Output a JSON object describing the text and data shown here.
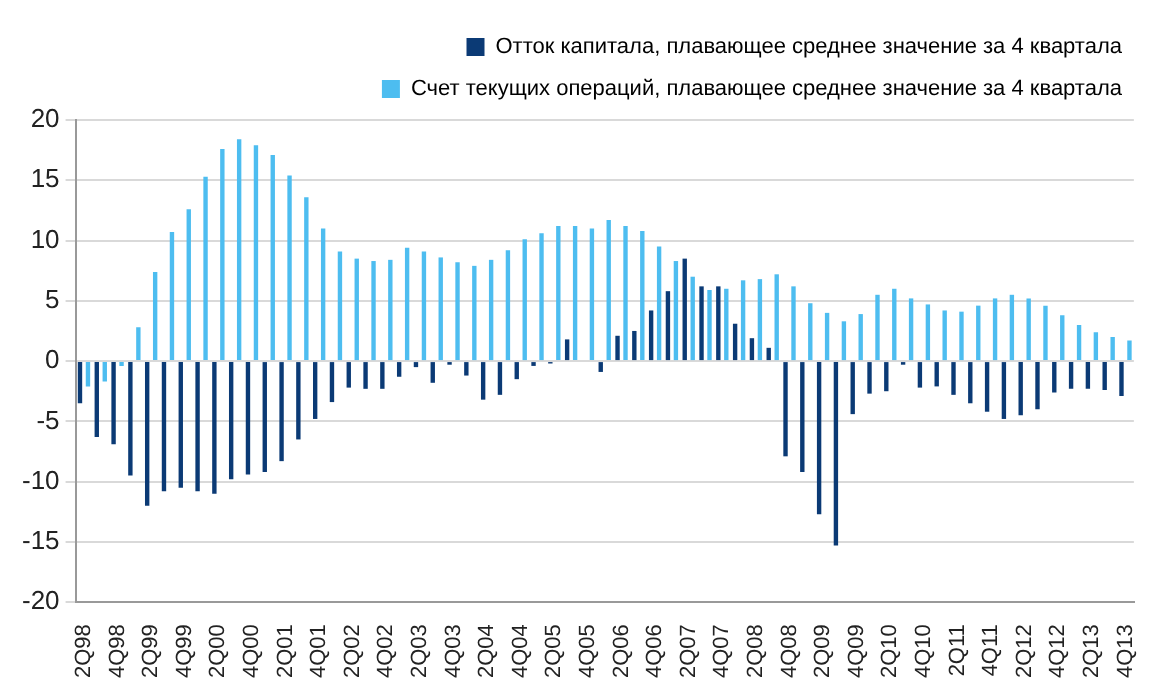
{
  "chart_data": {
    "type": "bar",
    "categories": [
      "2Q98",
      null,
      "4Q98",
      null,
      "2Q99",
      null,
      "4Q99",
      null,
      "2Q00",
      null,
      "4Q00",
      null,
      "2Q01",
      null,
      "4Q01",
      null,
      "2Q02",
      null,
      "4Q02",
      null,
      "2Q03",
      null,
      "4Q03",
      null,
      "2Q04",
      null,
      "4Q04",
      null,
      "2Q05",
      null,
      "4Q05",
      null,
      "2Q06",
      null,
      "4Q06",
      null,
      "2Q07",
      null,
      "4Q07",
      null,
      "2Q08",
      null,
      "4Q08",
      null,
      "2Q09",
      null,
      "4Q09",
      null,
      "2Q10",
      null,
      "4Q10",
      null,
      "2Q11",
      null,
      "4Q11",
      null,
      "2Q12",
      null,
      "4Q12",
      null,
      "2Q13",
      null,
      "4Q13"
    ],
    "series": [
      {
        "name": "Отток капитала, плавающее среднее значение за 4 квартала",
        "color": "#0b3a75",
        "values": [
          -3.5,
          -6.3,
          -6.9,
          -9.5,
          -12.0,
          -10.8,
          -10.5,
          -10.8,
          -11.0,
          -9.8,
          -9.4,
          -9.2,
          -8.3,
          -6.5,
          -4.8,
          -3.4,
          -2.2,
          -2.3,
          -2.3,
          -1.3,
          -0.5,
          -1.8,
          -0.3,
          -1.2,
          -3.2,
          -2.8,
          -1.5,
          -0.4,
          -0.2,
          1.8,
          0,
          -0.9,
          2.1,
          2.5,
          4.2,
          5.8,
          8.5,
          6.2,
          6.2,
          3.1,
          1.9,
          1.1,
          -7.9,
          -9.2,
          -12.7,
          -15.3,
          -4.4,
          -2.7,
          -2.5,
          -0.3,
          -2.2,
          -2.1,
          -2.8,
          -3.5,
          -4.2,
          -4.8,
          -4.5,
          -4.0,
          -2.6,
          -2.3,
          -2.3,
          -2.4,
          -2.9
        ]
      },
      {
        "name": "Счет текущих операций, плавающее среднее значение за 4 квартала",
        "color": "#4dbdf0",
        "values": [
          -2.1,
          -1.7,
          -0.4,
          2.8,
          7.4,
          10.7,
          12.6,
          15.3,
          17.6,
          18.4,
          17.9,
          17.1,
          15.4,
          13.6,
          11.0,
          9.1,
          8.5,
          8.3,
          8.4,
          9.4,
          9.1,
          8.6,
          8.2,
          7.9,
          8.4,
          9.2,
          10.1,
          10.6,
          11.2,
          11.2,
          11.0,
          11.7,
          11.2,
          10.8,
          9.5,
          8.3,
          7.0,
          5.9,
          6.0,
          6.7,
          6.8,
          7.2,
          6.2,
          4.8,
          4.0,
          3.3,
          3.9,
          5.5,
          6.0,
          5.2,
          4.7,
          4.2,
          4.1,
          4.6,
          5.2,
          5.5,
          5.2,
          4.6,
          3.8,
          3.0,
          2.4,
          2.0,
          1.7
        ]
      }
    ],
    "ylim": [
      -20,
      20
    ],
    "yticks": [
      -20,
      -15,
      -10,
      -5,
      0,
      5,
      10,
      15,
      20
    ],
    "grid": "y",
    "legend": "top right"
  }
}
